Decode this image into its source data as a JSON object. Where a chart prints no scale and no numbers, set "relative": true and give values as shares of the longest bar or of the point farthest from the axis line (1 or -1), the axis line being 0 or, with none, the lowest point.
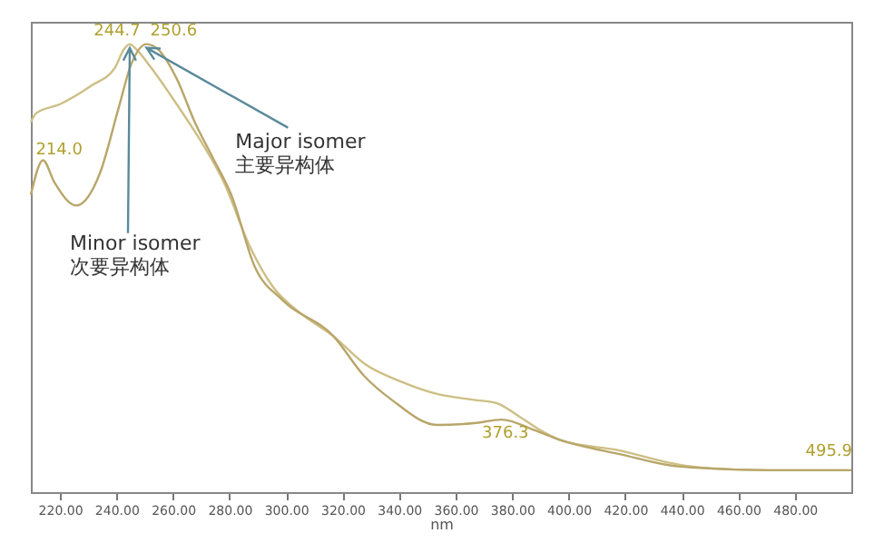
{
  "chart_data": {
    "type": "line",
    "relative": true,
    "xlabel": "nm",
    "xlim": [
      209.7,
      500
    ],
    "xticks": [
      {
        "value": 220,
        "label": "220.00"
      },
      {
        "value": 240,
        "label": "240.00"
      },
      {
        "value": 260,
        "label": "260.00"
      },
      {
        "value": 280,
        "label": "280.00"
      },
      {
        "value": 300,
        "label": "300.00"
      },
      {
        "value": 320,
        "label": "320.00"
      },
      {
        "value": 340,
        "label": "340.00"
      },
      {
        "value": 360,
        "label": "360.00"
      },
      {
        "value": 380,
        "label": "380.00"
      },
      {
        "value": 400,
        "label": "400.00"
      },
      {
        "value": 420,
        "label": "420.00"
      },
      {
        "value": 440,
        "label": "440.00"
      },
      {
        "value": 460,
        "label": "460.00"
      },
      {
        "value": 480,
        "label": "480.00"
      }
    ],
    "series": [
      {
        "color": "#cdbf85",
        "x": [
          209.7,
          211.6,
          220,
          231,
          239.4,
          242.6,
          244.7,
          247.1,
          252.3,
          261.3,
          269.7,
          278,
          287,
          295.5,
          305,
          316.8,
          327.7,
          340.6,
          353.5,
          366.5,
          374.8,
          381.3,
          389,
          396.8,
          418,
          439.4,
          450,
          471.6,
          500
        ],
        "values": [
          0.826,
          0.846,
          0.866,
          0.907,
          0.947,
          0.988,
          1.0,
          0.988,
          0.947,
          0.866,
          0.785,
          0.692,
          0.551,
          0.457,
          0.4,
          0.348,
          0.287,
          0.247,
          0.219,
          0.206,
          0.198,
          0.174,
          0.142,
          0.117,
          0.093,
          0.061,
          0.053,
          0.049,
          0.049
        ]
      },
      {
        "color": "#b8a66a",
        "x": [
          209.7,
          214,
          218,
          225.8,
          234.2,
          240.6,
          245.2,
          250.6,
          254.8,
          261.3,
          267.7,
          274.2,
          280.6,
          289,
          298.7,
          316.8,
          327.7,
          337.4,
          353.5,
          366.5,
          376.3,
          388,
          396.8,
          418,
          439.4,
          471.6,
          495.9,
          500
        ],
        "values": [
          0.664,
          0.741,
          0.692,
          0.64,
          0.713,
          0.854,
          0.955,
          1.0,
          0.988,
          0.923,
          0.826,
          0.745,
          0.664,
          0.502,
          0.429,
          0.348,
          0.259,
          0.206,
          0.15,
          0.154,
          0.162,
          0.138,
          0.117,
          0.085,
          0.057,
          0.049,
          0.049,
          0.049
        ]
      }
    ],
    "annotations": [
      {
        "text": "214.0",
        "x": 214,
        "y": 0.741
      },
      {
        "text": "244.7",
        "x": 244.7,
        "y": 1.0
      },
      {
        "text": "250.6",
        "x": 250.6,
        "y": 1.0
      },
      {
        "text": "376.3",
        "x": 376.3,
        "y": 0.162
      },
      {
        "text": "495.9",
        "x": 495.9,
        "y": 0.049
      },
      {
        "text": "Minor isomer\n次要异构体",
        "x": 244.7,
        "y": 1.0
      },
      {
        "text": "Major isomer\n主要异构体",
        "x": 250.6,
        "y": 1.0
      }
    ]
  }
}
